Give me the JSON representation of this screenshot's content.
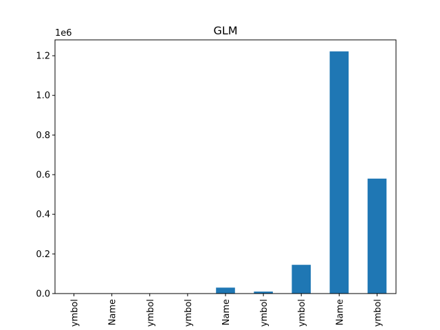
{
  "chart_data": {
    "type": "bar",
    "title": "GLM",
    "xlabel": "",
    "ylabel": "",
    "y_offset_label": "1e6",
    "categories": [
      "ymbol",
      "Name",
      "ymbol",
      "ymbol",
      "Name",
      "ymbol",
      "ymbol",
      "Name",
      "ymbol"
    ],
    "values": [
      0,
      0,
      0,
      0,
      30000,
      10000,
      145000,
      1222000,
      580000
    ],
    "ylim": [
      0,
      1280000
    ],
    "yticks": [
      0,
      200000,
      400000,
      600000,
      800000,
      1000000,
      1200000
    ],
    "ytick_labels": [
      "0.0",
      "0.2",
      "0.4",
      "0.6",
      "0.8",
      "1.0",
      "1.2"
    ],
    "bar_color": "#1f77b4",
    "grid": false,
    "legend": "none"
  }
}
